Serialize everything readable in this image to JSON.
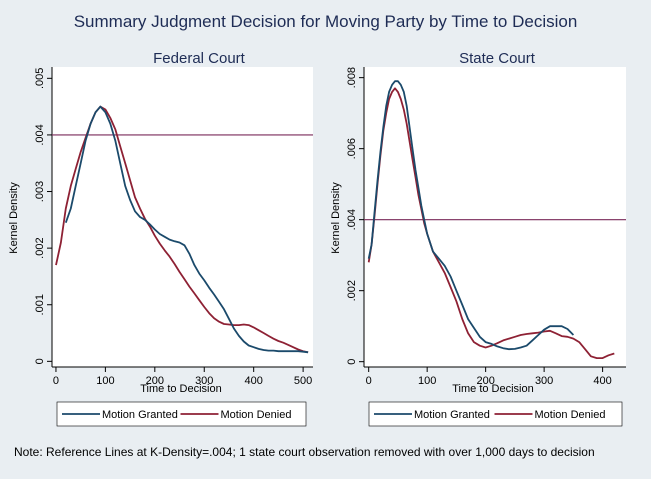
{
  "title": "Summary Judgment Decision for Moving Party by Time to Decision",
  "note": "Note: Reference Lines at K-Density=.004; 1 state court observation removed with over 1,000 days to decision",
  "colors": {
    "background": "#e9eef2",
    "plot_background": "#ffffff",
    "motion_granted": "#1b4a6b",
    "motion_denied": "#8e2134",
    "reference_line": "#7a2a5a",
    "title_text": "#1e2c55"
  },
  "chart_data": [
    {
      "type": "line",
      "title": "Federal Court",
      "xlabel": "Time to Decision",
      "ylabel": "Kernel Density",
      "xlim": [
        -8,
        520
      ],
      "ylim": [
        -0.0001,
        0.0052
      ],
      "xticks": [
        0,
        100,
        200,
        300,
        400,
        500
      ],
      "xtick_labels": [
        "0",
        "100",
        "200",
        "300",
        "400",
        "500"
      ],
      "yticks": [
        0,
        0.001,
        0.002,
        0.003,
        0.004,
        0.005
      ],
      "ytick_labels": [
        "0",
        ".001",
        ".002",
        ".003",
        ".004",
        ".005"
      ],
      "reference_line": 0.004,
      "grid": false,
      "legend_position": "bottom",
      "series": [
        {
          "name": "Motion Granted",
          "x": [
            20,
            30,
            40,
            50,
            60,
            70,
            80,
            90,
            100,
            110,
            120,
            130,
            140,
            150,
            160,
            170,
            180,
            190,
            200,
            210,
            220,
            230,
            240,
            250,
            260,
            270,
            280,
            290,
            300,
            310,
            320,
            330,
            340,
            350,
            360,
            370,
            380,
            390,
            400,
            410,
            420,
            430,
            440,
            450,
            460,
            470,
            480,
            490,
            500,
            510
          ],
          "y": [
            0.00245,
            0.0027,
            0.0031,
            0.0035,
            0.0039,
            0.0042,
            0.0044,
            0.0045,
            0.0044,
            0.0042,
            0.0039,
            0.0035,
            0.0031,
            0.00285,
            0.00265,
            0.00255,
            0.0025,
            0.00242,
            0.00233,
            0.00225,
            0.0022,
            0.00215,
            0.00212,
            0.0021,
            0.00205,
            0.0019,
            0.0017,
            0.00155,
            0.00143,
            0.0013,
            0.00118,
            0.00105,
            0.00092,
            0.00075,
            0.00058,
            0.00045,
            0.00035,
            0.00028,
            0.00025,
            0.00022,
            0.0002,
            0.00019,
            0.00019,
            0.00018,
            0.00018,
            0.00018,
            0.00018,
            0.00018,
            0.00017,
            0.00016
          ]
        },
        {
          "name": "Motion Denied",
          "x": [
            0,
            10,
            20,
            30,
            40,
            50,
            60,
            70,
            80,
            90,
            100,
            110,
            120,
            130,
            140,
            150,
            160,
            170,
            180,
            190,
            200,
            210,
            220,
            230,
            240,
            250,
            260,
            270,
            280,
            290,
            300,
            310,
            320,
            330,
            340,
            350,
            360,
            370,
            380,
            390,
            400,
            410,
            420,
            430,
            440,
            450,
            460,
            470,
            480,
            490,
            500,
            510
          ],
          "y": [
            0.0017,
            0.0021,
            0.0027,
            0.0031,
            0.0034,
            0.0037,
            0.00395,
            0.0042,
            0.0044,
            0.0045,
            0.00445,
            0.0043,
            0.0041,
            0.0038,
            0.0035,
            0.0032,
            0.0029,
            0.0027,
            0.00252,
            0.00238,
            0.00222,
            0.00208,
            0.00196,
            0.00185,
            0.00172,
            0.00158,
            0.00145,
            0.00132,
            0.0012,
            0.00108,
            0.00096,
            0.00085,
            0.00076,
            0.0007,
            0.00066,
            0.00065,
            0.00064,
            0.00064,
            0.00065,
            0.00064,
            0.0006,
            0.00055,
            0.0005,
            0.00045,
            0.0004,
            0.00036,
            0.00033,
            0.00029,
            0.00025,
            0.00021,
            0.00018,
            0.00016
          ]
        }
      ]
    },
    {
      "type": "line",
      "title": "State Court",
      "xlabel": "Time to Decision",
      "ylabel": "Kernel Density",
      "xlim": [
        -8,
        440
      ],
      "ylim": [
        -0.00015,
        0.0083
      ],
      "xticks": [
        0,
        100,
        200,
        300,
        400
      ],
      "xtick_labels": [
        "0",
        "100",
        "200",
        "300",
        "400"
      ],
      "yticks": [
        0,
        0.002,
        0.004,
        0.006,
        0.008
      ],
      "ytick_labels": [
        "0",
        ".002",
        ".004",
        ".006",
        ".008"
      ],
      "reference_line": 0.004,
      "grid": false,
      "legend_position": "bottom",
      "series": [
        {
          "name": "Motion Granted",
          "x": [
            0,
            5,
            10,
            15,
            20,
            25,
            30,
            35,
            40,
            45,
            50,
            55,
            60,
            65,
            70,
            75,
            80,
            85,
            90,
            95,
            100,
            110,
            120,
            130,
            140,
            150,
            160,
            170,
            180,
            190,
            200,
            210,
            220,
            230,
            240,
            250,
            260,
            270,
            280,
            290,
            300,
            310,
            320,
            330,
            340,
            350
          ],
          "y": [
            0.0029,
            0.0033,
            0.0042,
            0.0051,
            0.0059,
            0.0066,
            0.0072,
            0.0076,
            0.0078,
            0.0079,
            0.0079,
            0.0078,
            0.0076,
            0.0072,
            0.0066,
            0.006,
            0.0054,
            0.0049,
            0.0044,
            0.004,
            0.0036,
            0.0031,
            0.0029,
            0.0027,
            0.0024,
            0.002,
            0.0016,
            0.0012,
            0.00095,
            0.0007,
            0.00055,
            0.0005,
            0.00043,
            0.00038,
            0.00035,
            0.00036,
            0.0004,
            0.00045,
            0.0006,
            0.00075,
            0.0009,
            0.001,
            0.001,
            0.001,
            0.00092,
            0.00075
          ]
        },
        {
          "name": "Motion Denied",
          "x": [
            0,
            5,
            10,
            15,
            20,
            25,
            30,
            35,
            40,
            45,
            50,
            55,
            60,
            65,
            70,
            75,
            80,
            85,
            90,
            95,
            100,
            110,
            120,
            130,
            140,
            150,
            160,
            170,
            180,
            190,
            200,
            210,
            220,
            230,
            240,
            250,
            260,
            270,
            280,
            290,
            300,
            310,
            320,
            330,
            340,
            350,
            360,
            370,
            380,
            390,
            400,
            410,
            420
          ],
          "y": [
            0.0028,
            0.0033,
            0.0041,
            0.005,
            0.0058,
            0.0065,
            0.007,
            0.0074,
            0.0076,
            0.0077,
            0.0076,
            0.0074,
            0.0071,
            0.0067,
            0.0062,
            0.0057,
            0.0052,
            0.0047,
            0.0043,
            0.0039,
            0.0036,
            0.0031,
            0.0028,
            0.0025,
            0.0021,
            0.0017,
            0.0012,
            0.0008,
            0.00055,
            0.00045,
            0.0004,
            0.00045,
            0.00052,
            0.0006,
            0.00065,
            0.0007,
            0.00075,
            0.00078,
            0.0008,
            0.00082,
            0.00085,
            0.00087,
            0.0008,
            0.00072,
            0.0007,
            0.00065,
            0.00055,
            0.00035,
            0.00015,
            0.0001,
            0.0001,
            0.00018,
            0.00023
          ]
        }
      ]
    }
  ]
}
